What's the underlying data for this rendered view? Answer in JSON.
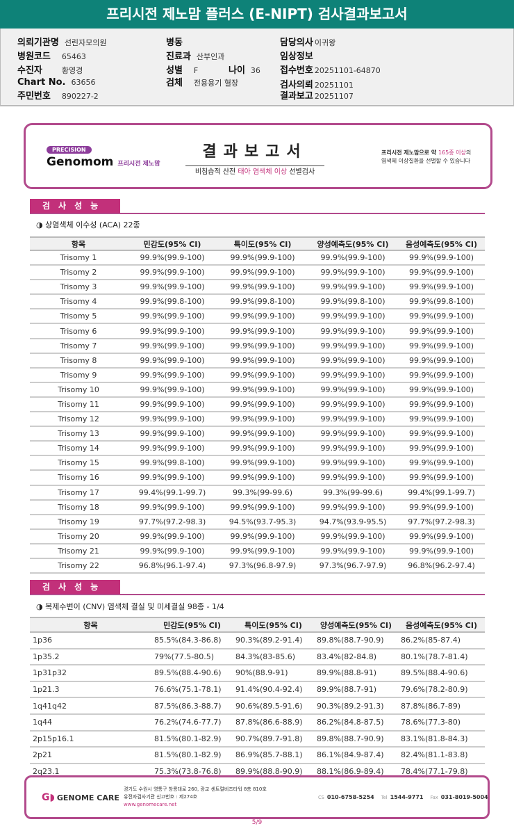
{
  "title": "프리시전 제노맘 플러스 (E-NIPT) 검사결과보고서",
  "patient": {
    "hospital_label": "의뢰기관명",
    "hospital": "선린자모의원",
    "code_label": "병원코드",
    "code": "65463",
    "patient_label": "수진자",
    "patient": "황영경",
    "chart_label": "Chart No.",
    "chart": "63656",
    "rrn_label": "주민번호",
    "rrn": "890227-2",
    "ward_label": "병동",
    "dept_label": "진료과",
    "dept": "산부인과",
    "sex_label": "성별",
    "sex": "F",
    "age_label": "나이",
    "age": "36",
    "specimen_label": "검체",
    "specimen": "전용용기 혈장",
    "doctor_label": "담당의사",
    "doctor": "이귀왕",
    "clinical_label": "임상정보",
    "receipt_label": "접수번호",
    "receipt": "20251101-64870",
    "request_label": "검사의뢰",
    "request": "20251101",
    "report_label": "결과보고",
    "report": "20251107"
  },
  "card": {
    "precision": "PRECISION",
    "brand": "Genomom",
    "brand_kr": "프리시전 제노맘",
    "title": "결과보고서",
    "subtitle_pre": "비침습적 산전 ",
    "subtitle_em": "태아 염색체 이상",
    "subtitle_post": " 선별검사",
    "desc1_pre": "프리시전 제노맘으로 약 ",
    "desc1_em": "165종 이상",
    "desc1_post": "의",
    "desc2": "염색체 이상질환을 선별할 수 있습니다"
  },
  "section_label": "검사성능",
  "aca": {
    "subtitle": "◑ 상염색체 이수성 (ACA) 22종",
    "headers": [
      "항목",
      "민감도(95% CI)",
      "특이도(95% CI)",
      "양성예측도(95% CI)",
      "음성예측도(95% CI)"
    ],
    "rows": [
      [
        "Trisomy 1",
        "99.9%(99.9-100)",
        "99.9%(99.9-100)",
        "99.9%(99.9-100)",
        "99.9%(99.9-100)"
      ],
      [
        "Trisomy 2",
        "99.9%(99.9-100)",
        "99.9%(99.9-100)",
        "99.9%(99.9-100)",
        "99.9%(99.9-100)"
      ],
      [
        "Trisomy 3",
        "99.9%(99.9-100)",
        "99.9%(99.9-100)",
        "99.9%(99.9-100)",
        "99.9%(99.9-100)"
      ],
      [
        "Trisomy 4",
        "99.9%(99.8-100)",
        "99.9%(99.8-100)",
        "99.9%(99.8-100)",
        "99.9%(99.8-100)"
      ],
      [
        "Trisomy 5",
        "99.9%(99.9-100)",
        "99.9%(99.9-100)",
        "99.9%(99.9-100)",
        "99.9%(99.9-100)"
      ],
      [
        "Trisomy 6",
        "99.9%(99.9-100)",
        "99.9%(99.9-100)",
        "99.9%(99.9-100)",
        "99.9%(99.9-100)"
      ],
      [
        "Trisomy 7",
        "99.9%(99.9-100)",
        "99.9%(99.9-100)",
        "99.9%(99.9-100)",
        "99.9%(99.9-100)"
      ],
      [
        "Trisomy 8",
        "99.9%(99.9-100)",
        "99.9%(99.9-100)",
        "99.9%(99.9-100)",
        "99.9%(99.9-100)"
      ],
      [
        "Trisomy 9",
        "99.9%(99.9-100)",
        "99.9%(99.9-100)",
        "99.9%(99.9-100)",
        "99.9%(99.9-100)"
      ],
      [
        "Trisomy 10",
        "99.9%(99.9-100)",
        "99.9%(99.9-100)",
        "99.9%(99.9-100)",
        "99.9%(99.9-100)"
      ],
      [
        "Trisomy 11",
        "99.9%(99.9-100)",
        "99.9%(99.9-100)",
        "99.9%(99.9-100)",
        "99.9%(99.9-100)"
      ],
      [
        "Trisomy 12",
        "99.9%(99.9-100)",
        "99.9%(99.9-100)",
        "99.9%(99.9-100)",
        "99.9%(99.9-100)"
      ],
      [
        "Trisomy 13",
        "99.9%(99.9-100)",
        "99.9%(99.9-100)",
        "99.9%(99.9-100)",
        "99.9%(99.9-100)"
      ],
      [
        "Trisomy 14",
        "99.9%(99.9-100)",
        "99.9%(99.9-100)",
        "99.9%(99.9-100)",
        "99.9%(99.9-100)"
      ],
      [
        "Trisomy 15",
        "99.9%(99.8-100)",
        "99.9%(99.9-100)",
        "99.9%(99.9-100)",
        "99.9%(99.9-100)"
      ],
      [
        "Trisomy 16",
        "99.9%(99.9-100)",
        "99.9%(99.9-100)",
        "99.9%(99.9-100)",
        "99.9%(99.9-100)"
      ],
      [
        "Trisomy 17",
        "99.4%(99.1-99.7)",
        "99.3%(99-99.6)",
        "99.3%(99-99.6)",
        "99.4%(99.1-99.7)"
      ],
      [
        "Trisomy 18",
        "99.9%(99.9-100)",
        "99.9%(99.9-100)",
        "99.9%(99.9-100)",
        "99.9%(99.9-100)"
      ],
      [
        "Trisomy 19",
        "97.7%(97.2-98.3)",
        "94.5%(93.7-95.3)",
        "94.7%(93.9-95.5)",
        "97.7%(97.2-98.3)"
      ],
      [
        "Trisomy 20",
        "99.9%(99.9-100)",
        "99.9%(99.9-100)",
        "99.9%(99.9-100)",
        "99.9%(99.9-100)"
      ],
      [
        "Trisomy 21",
        "99.9%(99.9-100)",
        "99.9%(99.9-100)",
        "99.9%(99.9-100)",
        "99.9%(99.9-100)"
      ],
      [
        "Trisomy 22",
        "96.8%(96.1-97.4)",
        "97.3%(96.8-97.9)",
        "97.3%(96.7-97.9)",
        "96.8%(96.2-97.4)"
      ]
    ]
  },
  "cnv": {
    "subtitle": "◑ 복제수변이 (CNV) 염색체 결실 및 미세결실 98종 - 1/4",
    "headers": [
      "항목",
      "민감도(95% CI)",
      "특이도(95% CI)",
      "양성예측도(95% CI)",
      "음성예측도(95% CI)"
    ],
    "rows": [
      [
        "1p36",
        "85.5%(84.3-86.8)",
        "90.3%(89.2-91.4)",
        "89.8%(88.7-90.9)",
        "86.2%(85-87.4)"
      ],
      [
        "1p35.2",
        "79%(77.5-80.5)",
        "84.3%(83-85.6)",
        "83.4%(82-84.8)",
        "80.1%(78.7-81.4)"
      ],
      [
        "1p31p32",
        "89.5%(88.4-90.6)",
        "90%(88.9-91)",
        "89.9%(88.8-91)",
        "89.5%(88.4-90.6)"
      ],
      [
        "1p21.3",
        "76.6%(75.1-78.1)",
        "91.4%(90.4-92.4)",
        "89.9%(88.7-91)",
        "79.6%(78.2-80.9)"
      ],
      [
        "1q41q42",
        "87.5%(86.3-88.7)",
        "90.6%(89.5-91.6)",
        "90.3%(89.2-91.3)",
        "87.8%(86.7-89)"
      ],
      [
        "1q44",
        "76.2%(74.6-77.7)",
        "87.8%(86.6-88.9)",
        "86.2%(84.8-87.5)",
        "78.6%(77.3-80)"
      ],
      [
        "2p15p16.1",
        "81.5%(80.1-82.9)",
        "90.7%(89.7-91.8)",
        "89.8%(88.7-90.9)",
        "83.1%(81.8-84.3)"
      ],
      [
        "2p21",
        "81.5%(80.1-82.9)",
        "86.9%(85.7-88.1)",
        "86.1%(84.9-87.4)",
        "82.4%(81.1-83.8)"
      ],
      [
        "2q23.1",
        "75.3%(73.8-76.8)",
        "89.9%(88.8-90.9)",
        "88.1%(86.9-89.4)",
        "78.4%(77.1-79.8)"
      ]
    ]
  },
  "footer": {
    "company": "GENOME CARE",
    "address": "경기도 수원시 영통구 창룡대로 260, 광교 센트럴비즈타워 8층 810호",
    "license": "유전자검사기관 신고번호 : 제274호",
    "url": "www.genomecare.net",
    "cs_label": "CS",
    "cs": "010-6758-5254",
    "tel_label": "Tel",
    "tel": "1544-9771",
    "fax_label": "Fax",
    "fax": "031-8019-5004"
  },
  "page": "5/9",
  "colors": {
    "header": "#0e8278",
    "accent": "#c2307a",
    "border": "#b24a8c"
  }
}
